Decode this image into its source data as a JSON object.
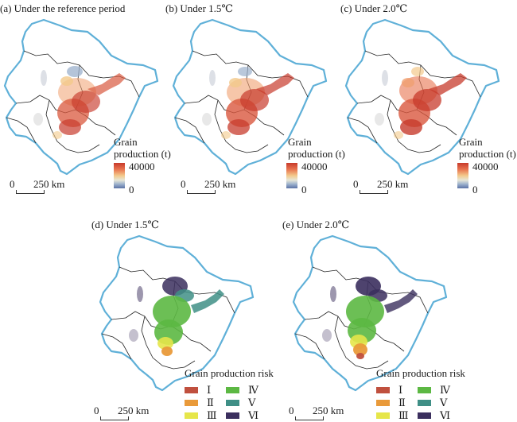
{
  "panels_top": [
    {
      "title": "(a) Under the reference period",
      "legend_title_1": "Grain",
      "legend_title_2": "production (t)",
      "cb_max": "40000",
      "cb_min": "0",
      "scale_zero": "0",
      "scale_dist": "250 km"
    },
    {
      "title": "(b) Under 1.5℃",
      "legend_title_1": "Grain",
      "legend_title_2": "production (t)",
      "cb_max": "40000",
      "cb_min": "0",
      "scale_zero": "0",
      "scale_dist": "250 km"
    },
    {
      "title": "(c) Under 2.0℃",
      "legend_title_1": "Grain",
      "legend_title_2": "production (t)",
      "cb_max": "40000",
      "cb_min": "0",
      "scale_zero": "0",
      "scale_dist": "250 km"
    }
  ],
  "panels_bottom": [
    {
      "title": "(d) Under 1.5℃",
      "legend_title": "Grain production risk",
      "scale_zero": "0",
      "scale_dist": "250 km"
    },
    {
      "title": "(e) Under 2.0℃",
      "legend_title": "Grain production risk",
      "scale_zero": "0",
      "scale_dist": "250 km"
    }
  ],
  "risk_classes": [
    {
      "label": "Ⅰ",
      "color": "#c0503e"
    },
    {
      "label": "Ⅱ",
      "color": "#e99a3a"
    },
    {
      "label": "Ⅲ",
      "color": "#e6e64a"
    },
    {
      "label": "Ⅳ",
      "color": "#5cb843"
    },
    {
      "label": "Ⅴ",
      "color": "#3f8f86"
    },
    {
      "label": "Ⅵ",
      "color": "#3b2f5e"
    }
  ],
  "colors": {
    "coast": "#5fb0d8",
    "border": "#222222",
    "high": "#c73b2c",
    "mid": "#f0a070",
    "low": "#7f95bf"
  }
}
